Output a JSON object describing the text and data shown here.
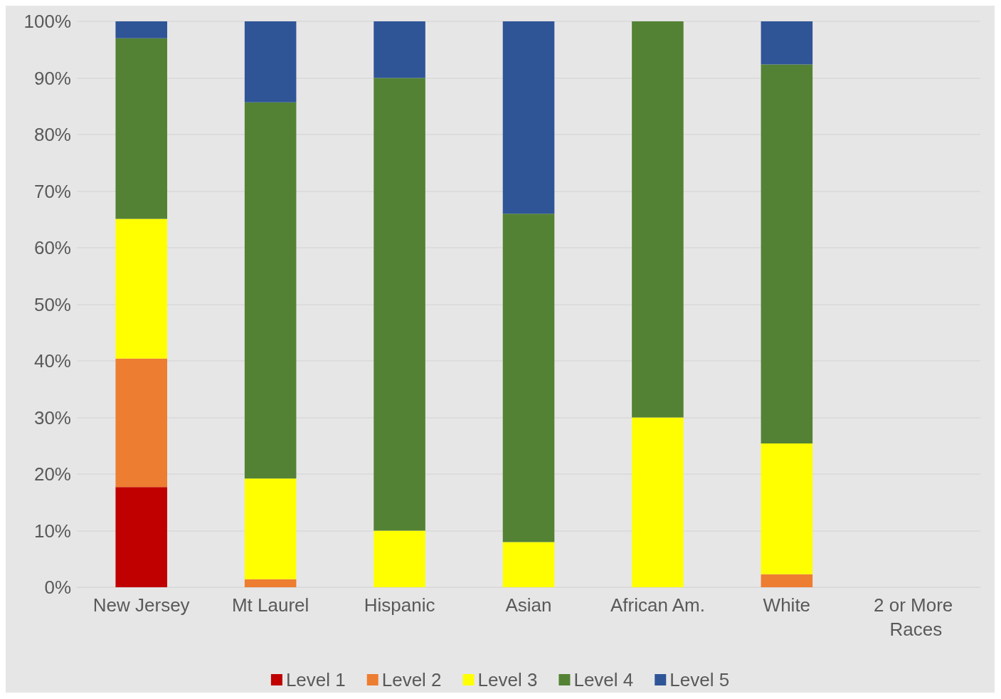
{
  "chart_data": {
    "type": "bar",
    "stacked": true,
    "categories": [
      "New Jersey",
      "Mt Laurel",
      "Hispanic",
      "Asian",
      "African Am.",
      "White",
      "2 or More Races"
    ],
    "series": [
      {
        "name": "Level 1",
        "color": "#c00000",
        "values": [
          17.7,
          0,
          0,
          0,
          0,
          0,
          null
        ]
      },
      {
        "name": "Level 2",
        "color": "#ed7d31",
        "values": [
          22.7,
          1.4,
          0,
          0,
          0,
          2.3,
          null
        ]
      },
      {
        "name": "Level 3",
        "color": "#ffff00",
        "values": [
          24.7,
          17.8,
          10,
          8,
          30,
          23.1,
          null
        ]
      },
      {
        "name": "Level 4",
        "color": "#548235",
        "values": [
          31.9,
          66.5,
          80,
          58,
          70,
          67,
          null
        ]
      },
      {
        "name": "Level 5",
        "color": "#2f5597",
        "values": [
          3,
          14.3,
          10,
          34,
          0,
          7.6,
          null
        ]
      }
    ],
    "ylim": [
      0,
      100
    ],
    "yticks": [
      {
        "value": 0,
        "label": "0%"
      },
      {
        "value": 10,
        "label": "10%"
      },
      {
        "value": 20,
        "label": "20%"
      },
      {
        "value": 30,
        "label": "30%"
      },
      {
        "value": 40,
        "label": "40%"
      },
      {
        "value": 50,
        "label": "50%"
      },
      {
        "value": 60,
        "label": "60%"
      },
      {
        "value": 70,
        "label": "70%"
      },
      {
        "value": 80,
        "label": "80%"
      },
      {
        "value": 90,
        "label": "90%"
      },
      {
        "value": 100,
        "label": "100%"
      }
    ],
    "grid": "y",
    "legend": "bottom"
  }
}
